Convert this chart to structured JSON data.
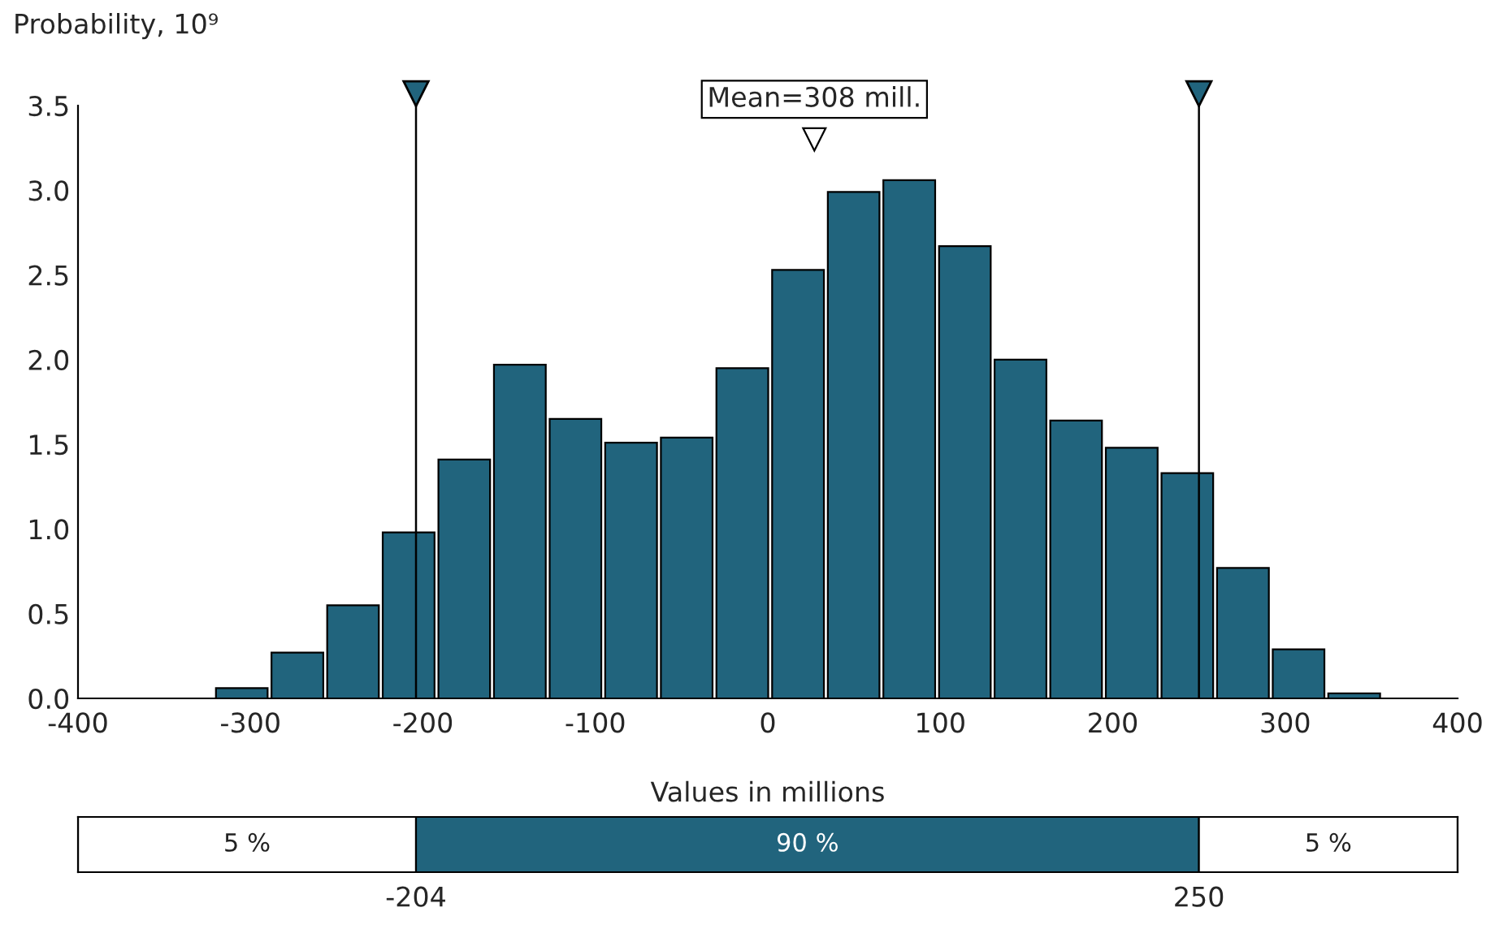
{
  "chart_data": [
    {
      "type": "histogram",
      "ylabel": "Probability, 10⁹",
      "color": "#21647d",
      "bins": [
        -320,
        -287.8,
        -255.5,
        -223.3,
        -191,
        -158.8,
        -126.5,
        -94.3,
        -62,
        -29.8,
        2.5,
        34.8,
        67,
        99.3,
        131.5,
        163.8,
        196,
        228.3,
        260.5,
        292.8,
        325,
        357.3
      ],
      "values": [
        0.06,
        0.27,
        0.55,
        0.98,
        1.41,
        1.97,
        1.65,
        1.51,
        1.54,
        1.95,
        2.53,
        2.99,
        3.06,
        2.67,
        2.0,
        1.64,
        1.48,
        1.33,
        0.77,
        0.29,
        0.03
      ],
      "xlim": [
        -400,
        400
      ],
      "xticks": [
        -400,
        -300,
        -200,
        -100,
        0,
        100,
        200,
        300,
        400
      ],
      "ylim": [
        0,
        3.5
      ],
      "yticks": [
        {
          "value": 0,
          "label": "0.0"
        },
        {
          "value": 0.5,
          "label": "0.5"
        },
        {
          "value": 1,
          "label": "1.0"
        },
        {
          "value": 1.5,
          "label": "1.5"
        },
        {
          "value": 2,
          "label": "2.0"
        },
        {
          "value": 2.5,
          "label": "2.5"
        },
        {
          "value": 3,
          "label": "3.0"
        },
        {
          "value": 3.5,
          "label": "3.5"
        }
      ],
      "ref_lines": [
        {
          "axis": "x",
          "value": -204,
          "color": "#000000"
        },
        {
          "axis": "x",
          "value": 250,
          "color": "#000000"
        }
      ],
      "annotations": [
        {
          "text": "Mean=308 mill.",
          "x": 27,
          "y": 3.3
        }
      ],
      "grid": false
    },
    {
      "type": "other",
      "xlabel": "Values in millions",
      "colors": [
        "#ffffff",
        "#21647d",
        "#ffffff"
      ],
      "annotations": [
        "5 %",
        "90 %",
        "5 %",
        "-204",
        "250"
      ]
    }
  ]
}
